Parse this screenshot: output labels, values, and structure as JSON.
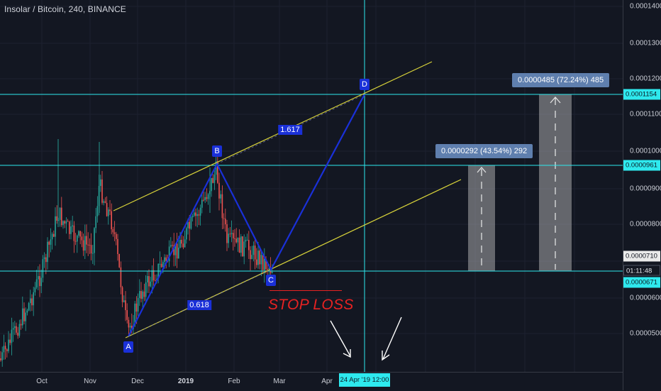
{
  "header": {
    "title": "Insolar / Bitcoin, 240, BINANCE"
  },
  "y_axis": {
    "labels": [
      "0.0001400",
      "0.0001300",
      "0.0001200",
      "0.0001100",
      "0.0001000",
      "0.0000900",
      "0.0000800",
      "0.0000700",
      "0.0000600",
      "0.0000500"
    ],
    "tags": {
      "d_level": "0.0001154",
      "b_level": "0.0000961",
      "last_price": "0.0000710",
      "countdown": "01:11:48",
      "c_level": "0.0000671"
    }
  },
  "x_axis": {
    "labels": [
      "Oct",
      "Nov",
      "Dec",
      "2019",
      "Feb",
      "Mar",
      "Apr"
    ],
    "crosshair_label": "24 Apr '19   12:00"
  },
  "pattern": {
    "points": {
      "a": "A",
      "b": "B",
      "c": "C",
      "d": "D"
    },
    "fib_ab_bc": "0.618",
    "fib_bc_cd": "1.617"
  },
  "callouts": {
    "target1": "0.0000292 (43.54%) 292",
    "target2": "0.0000485 (72.24%) 485"
  },
  "annotation": {
    "stop_loss": "STOP LOSS"
  },
  "colors": {
    "background": "#131722",
    "horizontal_lines": "#2ee9ee",
    "channel": "#d8d33a",
    "pattern": "#1a30d8",
    "stop_loss": "#e62222",
    "candles_up": "#26a69a",
    "candles_down": "#ef5350"
  }
}
